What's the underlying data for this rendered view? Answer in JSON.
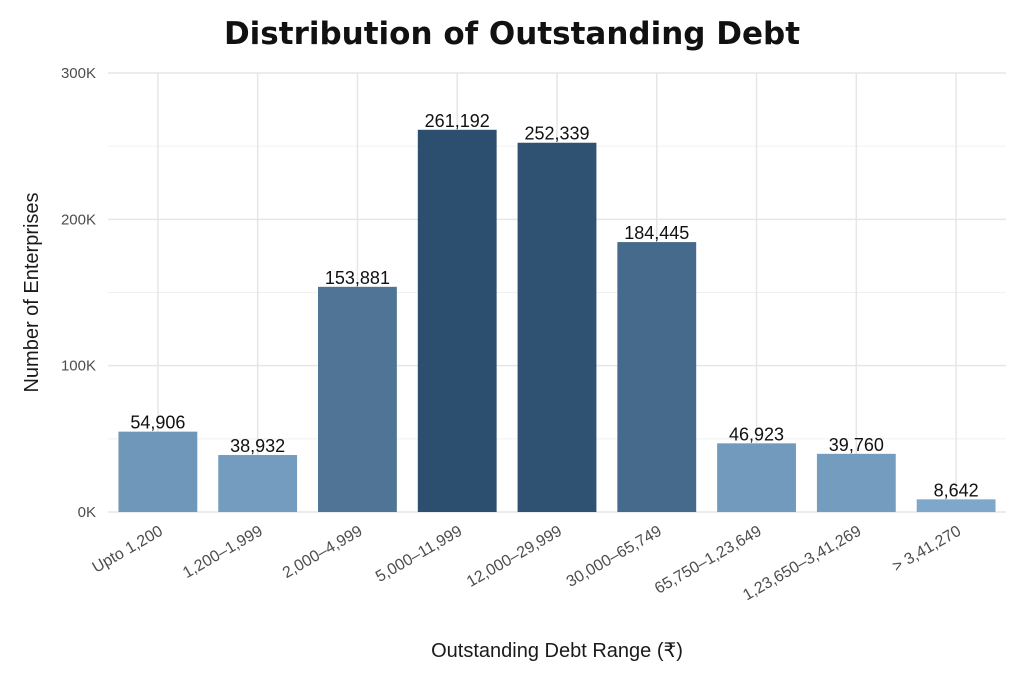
{
  "chart_data": {
    "type": "bar",
    "title": "Distribution of Outstanding Debt",
    "xlabel": "Outstanding Debt Range (₹)",
    "ylabel": "Number of Enterprises",
    "categories": [
      "Upto 1,200",
      "1,200–1,999",
      "2,000–4,999",
      "5,000–11,999",
      "12,000–29,999",
      "30,000–65,749",
      "65,750–1,23,649",
      "1,23,650–3,41,269",
      "> 3,41,270"
    ],
    "values": [
      54906,
      38932,
      153881,
      261192,
      252339,
      184445,
      46923,
      39760,
      8642
    ],
    "value_labels": [
      "54,906",
      "38,932",
      "153,881",
      "261,192",
      "252,339",
      "184,445",
      "46,923",
      "39,760",
      "8,642"
    ],
    "ylim": [
      0,
      300000
    ],
    "yticks": [
      0,
      100000,
      200000,
      300000
    ],
    "ytick_labels": [
      "0K",
      "100K",
      "200K",
      "300K"
    ],
    "grid": true,
    "legend": "none",
    "bar_color_scale": [
      "#7ea7c9",
      "#2c4f70"
    ]
  }
}
